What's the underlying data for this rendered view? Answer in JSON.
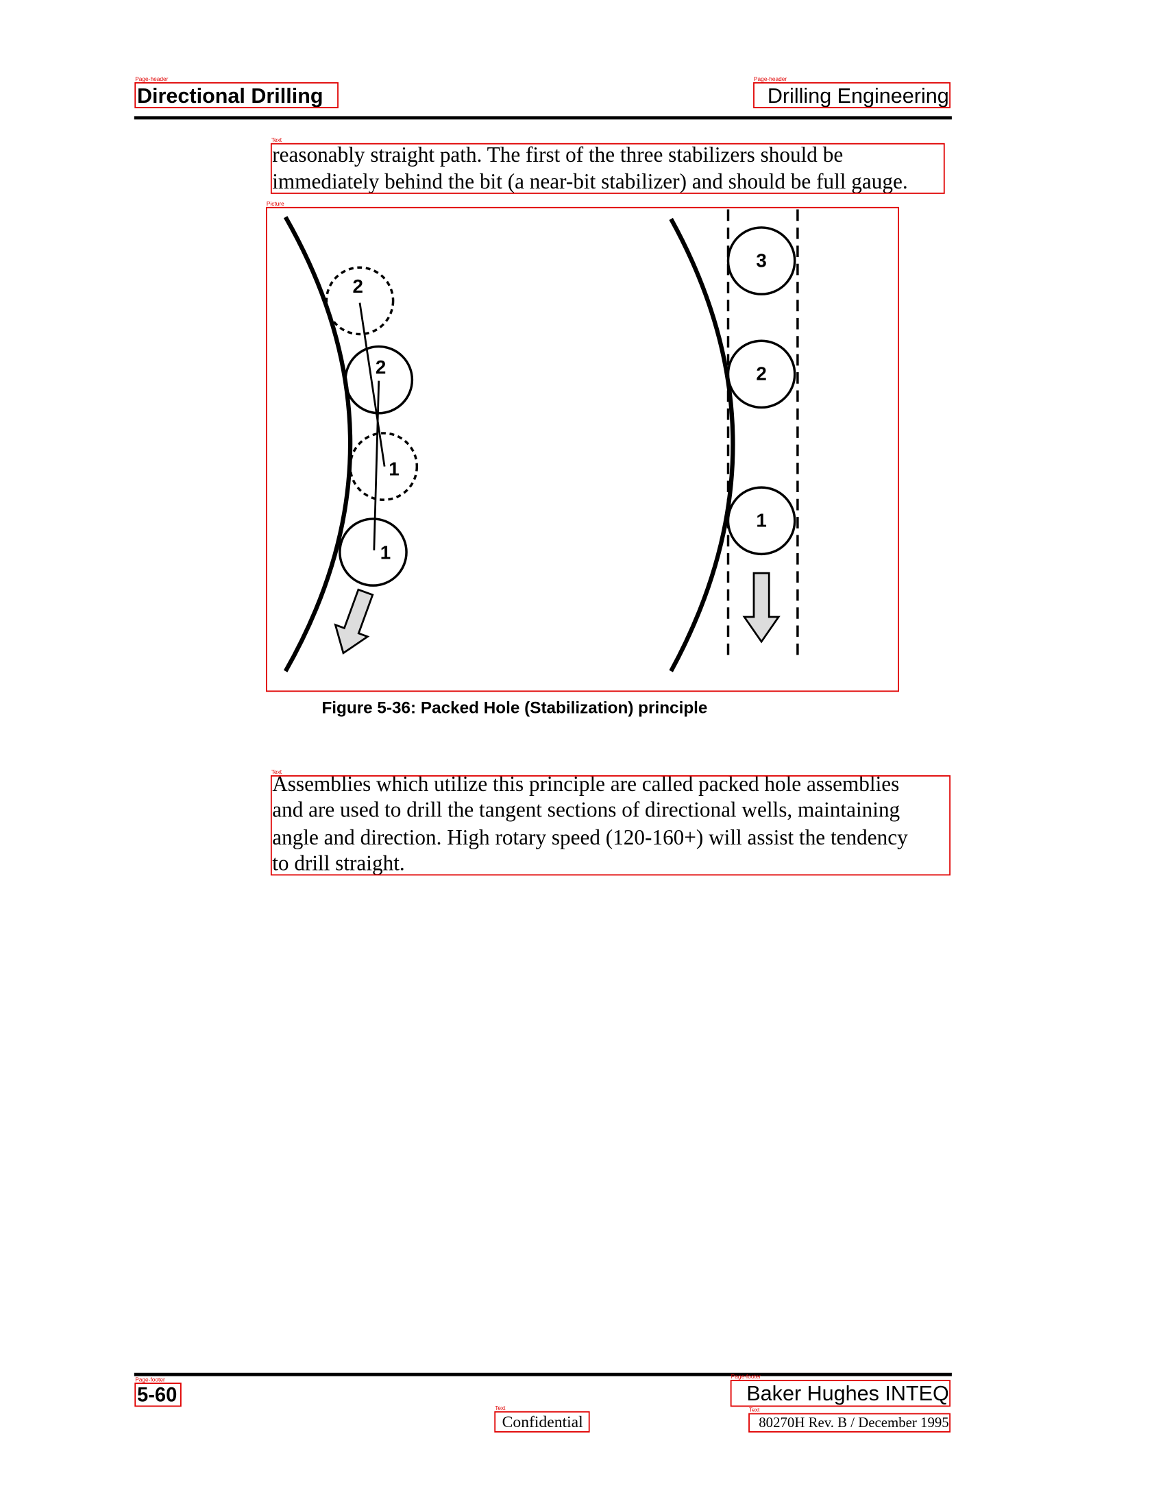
{
  "header": {
    "left": "Directional Drilling",
    "right": "Drilling Engineering"
  },
  "paragraphs": [
    {
      "lines": [
        "reasonably straight path. The first of the three stabilizers should be",
        "immediately behind the bit (a near-bit stabilizer) and should be full gauge."
      ]
    },
    {
      "lines": [
        "Assemblies which utilize this principle are called packed hole assemblies",
        "and are used to drill the tangent sections of directional wells, maintaining",
        "angle and direction. High rotary speed (120-160+) will assist the tendency",
        "to drill straight."
      ]
    }
  ],
  "figure": {
    "left_labels": [
      "2",
      "2",
      "1",
      "1"
    ],
    "right_labels": [
      "3",
      "2",
      "1"
    ],
    "caption": "Figure 5-36: Packed Hole (Stabilization) principle"
  },
  "footer": {
    "page": "5-60",
    "company": "Baker Hughes INTEQ",
    "confidential": "Confidential",
    "revision": "80270H Rev. B / December 1995"
  },
  "annotations": [
    "Page-header",
    "Page-header",
    "Text",
    "Picture",
    "Text",
    "Page-footer",
    "Page-footer",
    "Text",
    "Text"
  ]
}
